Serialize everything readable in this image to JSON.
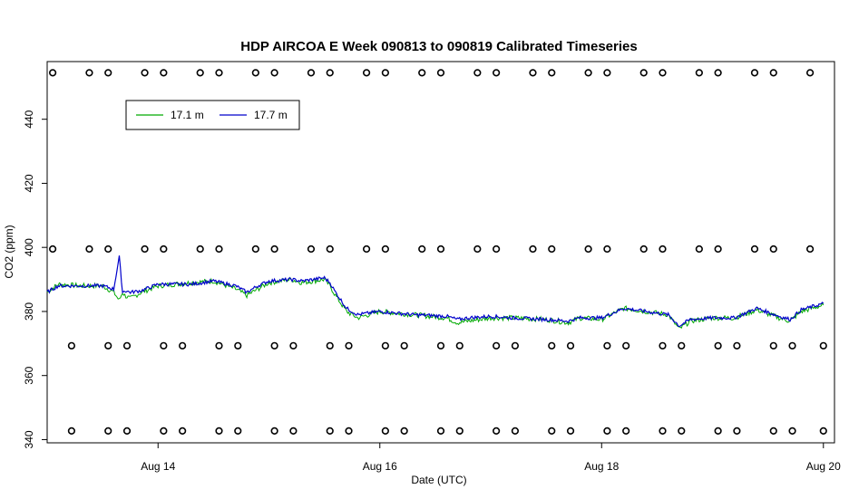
{
  "chart_data": {
    "type": "line",
    "title": "HDP AIRCOA E  Week 090813 to 090819  Calibrated Timeseries",
    "xlabel": "Date (UTC)",
    "ylabel": "CO2 (ppm)",
    "xlim": [
      13.0,
      20.1
    ],
    "ylim": [
      339,
      458
    ],
    "x_ticks": [
      {
        "value": 14,
        "label": "Aug 14"
      },
      {
        "value": 16,
        "label": "Aug 16"
      },
      {
        "value": 18,
        "label": "Aug 18"
      },
      {
        "value": 20,
        "label": "Aug 20"
      }
    ],
    "y_ticks": [
      340,
      360,
      380,
      400,
      420,
      440
    ],
    "legend": {
      "position": "top-left",
      "entries": [
        {
          "name": "17.1 m",
          "color": "#00aa00"
        },
        {
          "name": "17.7 m",
          "color": "#0000cc"
        }
      ]
    },
    "series": [
      {
        "name": "17.1 m",
        "color": "#00aa00",
        "x": [
          13.0,
          13.1,
          13.3,
          13.5,
          13.6,
          13.65,
          13.68,
          13.7,
          13.75,
          13.85,
          14.0,
          14.3,
          14.5,
          14.7,
          14.8,
          14.9,
          15.0,
          15.2,
          15.3,
          15.5,
          15.55,
          15.6,
          15.7,
          15.8,
          15.9,
          16.0,
          16.3,
          16.6,
          16.7,
          16.8,
          17.0,
          17.2,
          17.5,
          17.7,
          17.8,
          18.0,
          18.2,
          18.4,
          18.6,
          18.7,
          18.8,
          19.0,
          19.2,
          19.4,
          19.6,
          19.7,
          19.8,
          20.0
        ],
        "y": [
          386,
          388.5,
          388,
          388,
          386,
          383.5,
          386,
          385,
          384,
          386,
          388,
          389,
          389.5,
          387,
          385,
          387,
          389,
          390,
          389,
          390,
          388,
          385,
          380,
          378,
          379,
          380,
          379,
          378,
          376.5,
          377,
          378,
          378,
          377.5,
          376.5,
          378,
          377.5,
          381,
          380,
          379,
          374.5,
          377,
          378,
          378,
          380.5,
          378,
          377,
          380,
          382
        ]
      },
      {
        "name": "17.7 m",
        "color": "#0000cc",
        "x": [
          13.0,
          13.1,
          13.3,
          13.5,
          13.6,
          13.65,
          13.68,
          13.7,
          13.75,
          13.85,
          14.0,
          14.3,
          14.5,
          14.7,
          14.8,
          14.9,
          15.0,
          15.2,
          15.3,
          15.5,
          15.55,
          15.6,
          15.7,
          15.8,
          15.9,
          16.0,
          16.3,
          16.6,
          16.7,
          16.8,
          17.0,
          17.2,
          17.5,
          17.7,
          17.8,
          18.0,
          18.2,
          18.4,
          18.6,
          18.7,
          18.8,
          19.0,
          19.2,
          19.4,
          19.6,
          19.7,
          19.8,
          20.0
        ],
        "y": [
          386,
          388,
          388,
          388,
          387,
          397,
          386,
          386.5,
          386,
          386.5,
          388.5,
          388.5,
          389.5,
          388,
          386,
          388,
          389.5,
          390,
          389.5,
          390.5,
          389,
          386,
          381,
          379,
          379.5,
          380,
          379,
          378.5,
          377.5,
          378,
          378.5,
          378,
          377.5,
          377,
          378,
          378,
          381,
          380,
          379,
          375.5,
          377.5,
          378,
          378,
          381,
          378.5,
          377.5,
          380.5,
          382.5
        ]
      }
    ],
    "reference_rows": [
      {
        "y": 454.5,
        "x": [
          13.05,
          13.55,
          14.05,
          14.55,
          15.05,
          15.55,
          16.05,
          16.55,
          17.05,
          17.55,
          18.05,
          18.55,
          19.05,
          19.55,
          13.38,
          13.88,
          14.38,
          14.88,
          15.38,
          15.88,
          16.38,
          16.88,
          17.38,
          17.88,
          18.38,
          18.88,
          19.38,
          19.88
        ]
      },
      {
        "y": 399.5,
        "x": [
          13.05,
          13.55,
          14.05,
          14.55,
          15.05,
          15.55,
          16.05,
          16.55,
          17.05,
          17.55,
          18.05,
          18.55,
          19.05,
          19.55,
          13.38,
          13.88,
          14.38,
          14.88,
          15.38,
          15.88,
          16.38,
          16.88,
          17.38,
          17.88,
          18.38,
          18.88,
          19.38,
          19.88
        ]
      },
      {
        "y": 369.3,
        "x": [
          13.22,
          13.72,
          14.22,
          14.72,
          15.22,
          15.72,
          16.22,
          16.72,
          17.22,
          17.72,
          18.22,
          18.72,
          19.22,
          19.72,
          13.55,
          14.05,
          14.55,
          15.05,
          15.55,
          16.05,
          16.55,
          17.05,
          17.55,
          18.05,
          18.55,
          19.05,
          19.55,
          20.0
        ]
      },
      {
        "y": 342.7,
        "x": [
          13.22,
          13.72,
          14.22,
          14.72,
          15.22,
          15.72,
          16.22,
          16.72,
          17.22,
          17.72,
          18.22,
          18.72,
          19.22,
          19.72,
          13.55,
          14.05,
          14.55,
          15.05,
          15.55,
          16.05,
          16.55,
          17.05,
          17.55,
          18.05,
          18.55,
          19.05,
          19.55,
          20.0
        ]
      }
    ]
  }
}
